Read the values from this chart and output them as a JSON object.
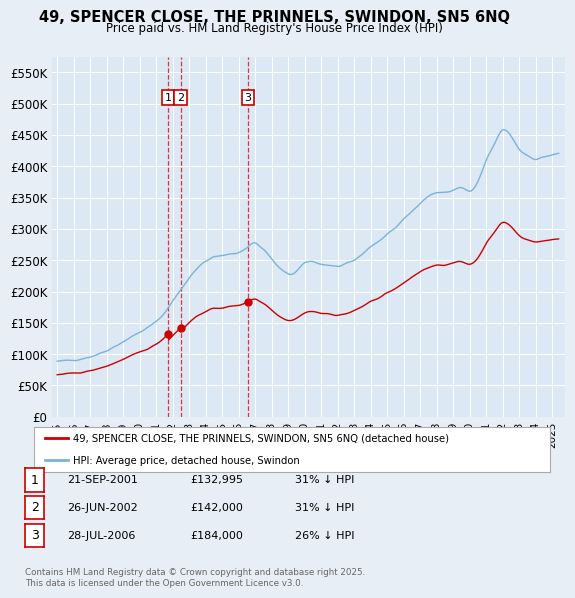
{
  "title_line1": "49, SPENCER CLOSE, THE PRINNELS, SWINDON, SN5 6NQ",
  "title_line2": "Price paid vs. HM Land Registry's House Price Index (HPI)",
  "background_color": "#e8eef5",
  "plot_bg_color": "#dce8f4",
  "legend_label_red": "49, SPENCER CLOSE, THE PRINNELS, SWINDON, SN5 6NQ (detached house)",
  "legend_label_blue": "HPI: Average price, detached house, Swindon",
  "transactions": [
    {
      "num": 1,
      "date": "21-SEP-2001",
      "price": 132995,
      "year": 2001.72,
      "hpi_pct": "31% ↓ HPI"
    },
    {
      "num": 2,
      "date": "26-JUN-2002",
      "price": 142000,
      "year": 2002.48,
      "hpi_pct": "31% ↓ HPI"
    },
    {
      "num": 3,
      "date": "28-JUL-2006",
      "price": 184000,
      "year": 2006.57,
      "hpi_pct": "26% ↓ HPI"
    }
  ],
  "footnote": "Contains HM Land Registry data © Crown copyright and database right 2025.\nThis data is licensed under the Open Government Licence v3.0.",
  "ylim": [
    0,
    575000
  ],
  "yticks": [
    0,
    50000,
    100000,
    150000,
    200000,
    250000,
    300000,
    350000,
    400000,
    450000,
    500000,
    550000
  ],
  "hpi_color": "#7ab4d8",
  "price_color": "#cc0000",
  "vline_color": "#cc0000",
  "t1_year": 2001.72,
  "t2_year": 2002.48,
  "t3_year": 2006.57,
  "p1": 132995,
  "p2": 142000,
  "p3": 184000
}
